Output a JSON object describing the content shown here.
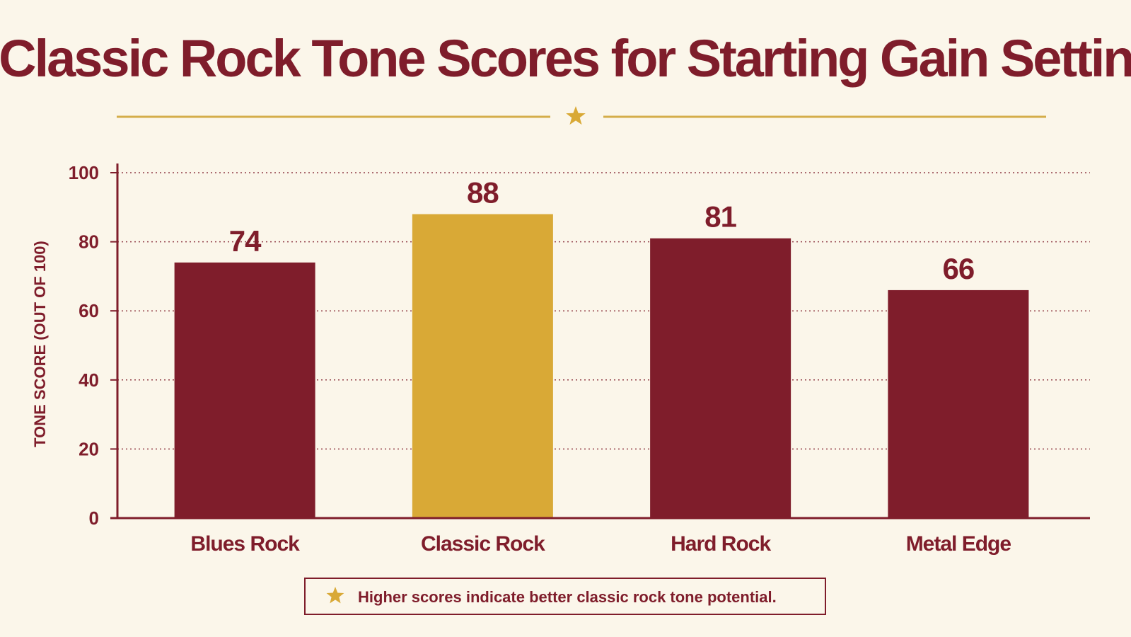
{
  "chart_data": {
    "type": "bar",
    "title": "Classic Rock Tone Scores for Starting Gain Settings",
    "xlabel": "",
    "ylabel": "TONE SCORE (OUT OF 100)",
    "ylim": [
      0,
      100
    ],
    "yticks": [
      "0",
      "20",
      "40",
      "60",
      "80",
      "100"
    ],
    "grid": true,
    "categories": [
      "Blues Rock",
      "Classic Rock",
      "Hard Rock",
      "Metal Edge"
    ],
    "values": [
      74,
      88,
      81,
      66
    ],
    "data_labels": [
      "74",
      "88",
      "81",
      "66"
    ],
    "highlighted_category": "Classic Rock",
    "note": "Higher scores indicate better classic rock tone potential."
  },
  "colors": {
    "background": "#fbf6ea",
    "primary": "#7f1d2b",
    "highlight": "#d9a936",
    "accent_line": "#d4ad4a"
  },
  "icons": {
    "divider": "star-icon",
    "note": "star-icon"
  }
}
